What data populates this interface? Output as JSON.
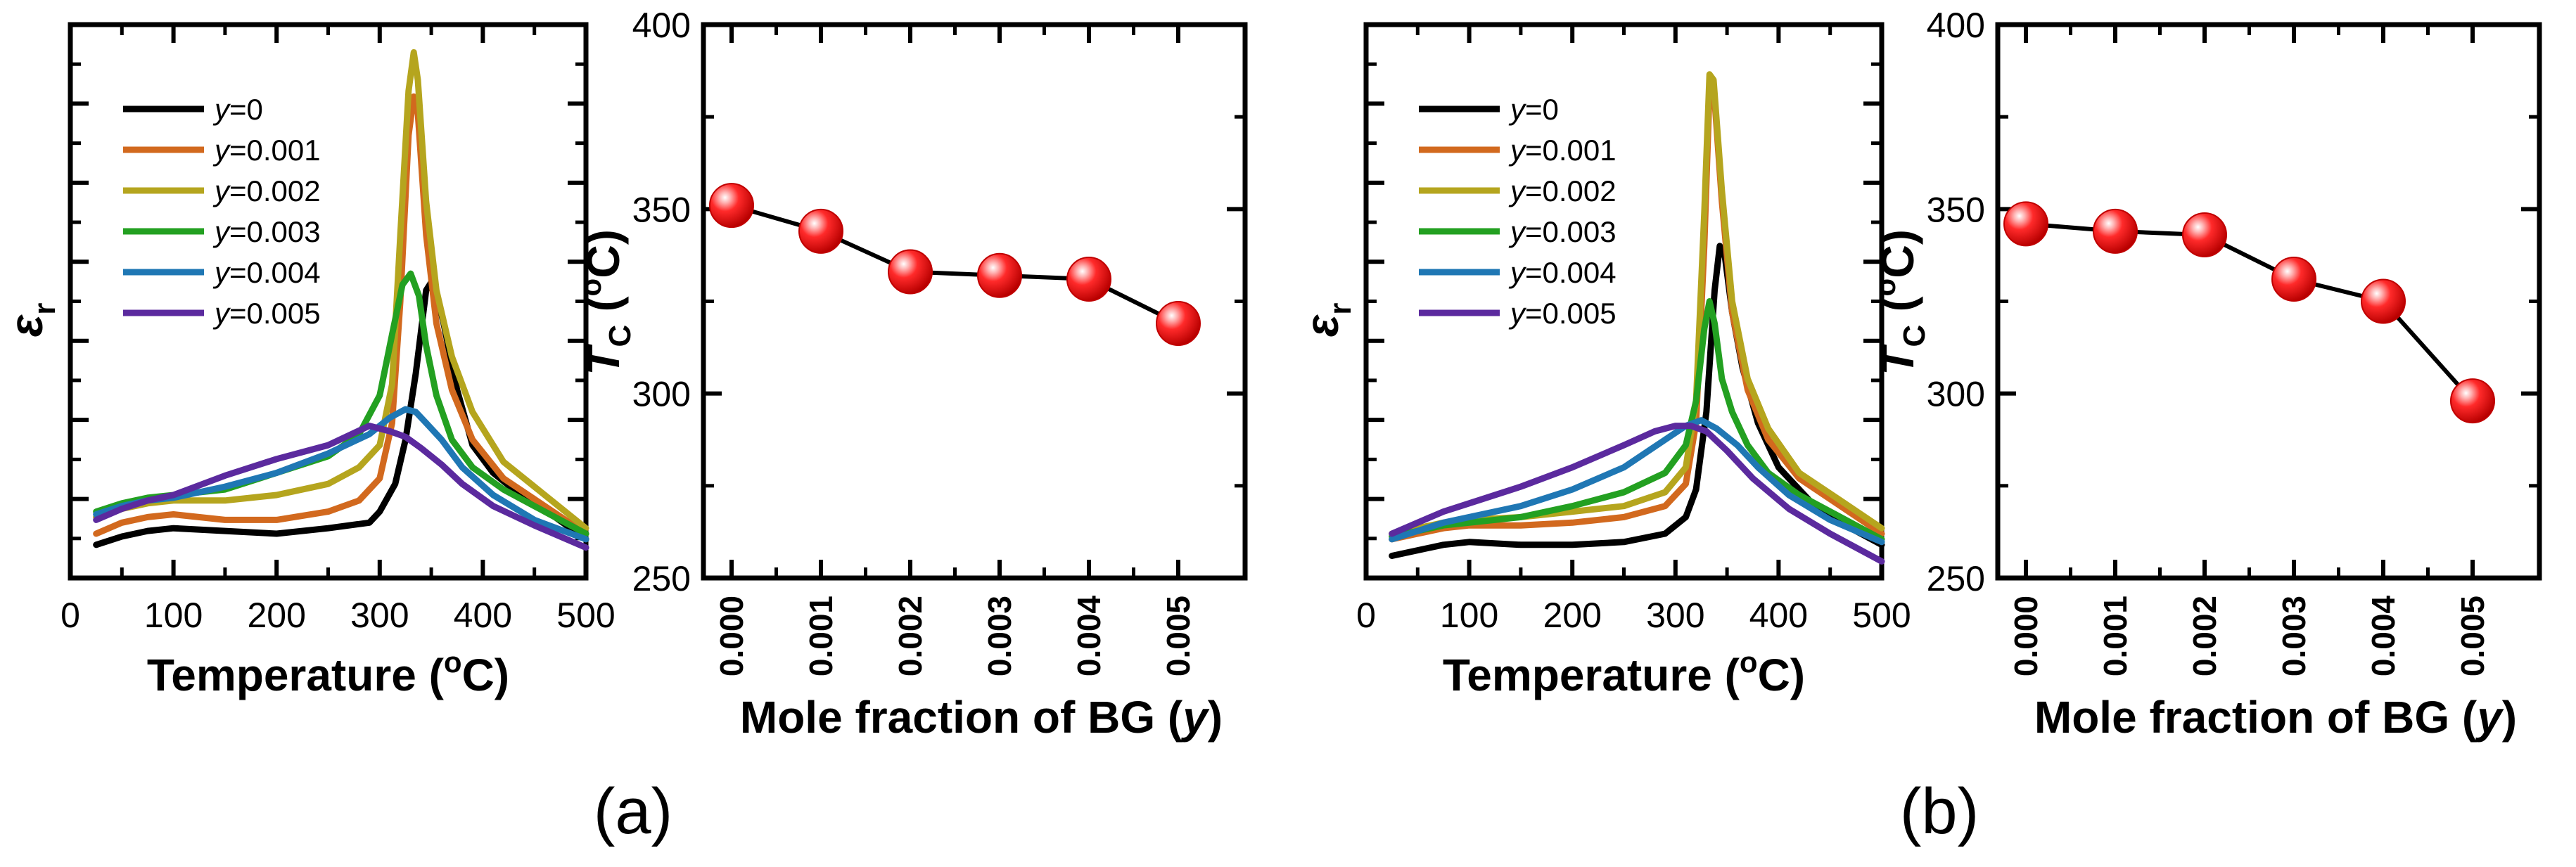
{
  "figure": {
    "panel_labels": [
      "(a)",
      "(b)"
    ]
  },
  "chart_data": [
    {
      "type": "line",
      "panel": "a",
      "title": "",
      "xlabel": "Temperature (°C)",
      "ylabel": "εr",
      "xlim": [
        0,
        500
      ],
      "ylim": [
        0,
        100
      ],
      "xticks": [
        0,
        100,
        200,
        300,
        400,
        500
      ],
      "yticks_labeled": false,
      "grid": false,
      "legend": "top-left",
      "series": [
        {
          "name": "y=0",
          "color": "#000000",
          "x": [
            25,
            50,
            75,
            100,
            150,
            200,
            250,
            290,
            300,
            315,
            325,
            335,
            345,
            352,
            362,
            375,
            390,
            410,
            440,
            470,
            500
          ],
          "y": [
            6,
            7.5,
            8.5,
            9,
            8.5,
            8,
            9,
            10,
            12,
            17,
            25,
            37,
            52,
            54,
            46,
            34,
            24,
            19,
            14.5,
            11,
            7
          ]
        },
        {
          "name": "y=0.001",
          "color": "#D2691E",
          "x": [
            25,
            50,
            75,
            100,
            150,
            200,
            250,
            280,
            300,
            312,
            320,
            328,
            333,
            337,
            345,
            355,
            370,
            390,
            420,
            460,
            500
          ],
          "y": [
            8,
            10,
            11,
            11.5,
            10.5,
            10.5,
            12,
            14,
            18,
            28,
            50,
            80,
            87,
            84,
            62,
            46,
            34,
            25,
            18,
            13,
            8
          ]
        },
        {
          "name": "y=0.002",
          "color": "#B5A51E",
          "x": [
            25,
            50,
            75,
            100,
            150,
            200,
            250,
            280,
            300,
            312,
            320,
            328,
            333,
            337,
            345,
            355,
            370,
            390,
            420,
            460,
            500
          ],
          "y": [
            11,
            12.5,
            13.5,
            14,
            14,
            15,
            17,
            20,
            24,
            35,
            62,
            88,
            95,
            90,
            68,
            52,
            40,
            30,
            21,
            15,
            9
          ]
        },
        {
          "name": "y=0.003",
          "color": "#23A021",
          "x": [
            25,
            50,
            75,
            100,
            150,
            200,
            250,
            280,
            300,
            312,
            322,
            330,
            338,
            345,
            355,
            370,
            390,
            420,
            460,
            500
          ],
          "y": [
            12,
            13.5,
            14.5,
            15,
            16,
            19,
            22,
            26,
            33,
            44,
            53,
            55,
            51,
            42,
            33,
            25,
            20,
            16,
            12,
            8
          ]
        },
        {
          "name": "y=0.004",
          "color": "#1F77B4",
          "x": [
            25,
            50,
            75,
            100,
            150,
            200,
            250,
            290,
            310,
            325,
            335,
            345,
            360,
            380,
            410,
            450,
            500
          ],
          "y": [
            11.5,
            13,
            14,
            14.5,
            16.5,
            19,
            22.5,
            26,
            29,
            30.5,
            30,
            28,
            25,
            20,
            15,
            10.5,
            7
          ]
        },
        {
          "name": "y=0.005",
          "color": "#5B2A9E",
          "x": [
            25,
            50,
            75,
            100,
            150,
            200,
            250,
            290,
            310,
            325,
            340,
            360,
            380,
            410,
            450,
            500
          ],
          "y": [
            10.5,
            12.5,
            14,
            15,
            18.5,
            21.5,
            24,
            27.5,
            26.5,
            25.5,
            23.5,
            20.5,
            17,
            13,
            9.5,
            5.5
          ]
        }
      ]
    },
    {
      "type": "scatter-line",
      "panel": "a",
      "title": "",
      "xlabel": "Mole fraction of BG (y)",
      "ylabel": "TC (°C)",
      "categories": [
        "0.000",
        "0.001",
        "0.002",
        "0.003",
        "0.004",
        "0.005"
      ],
      "values": [
        351,
        344,
        333,
        332,
        331,
        319
      ],
      "ylim": [
        250,
        400
      ],
      "yticks": [
        250,
        300,
        350,
        400
      ],
      "grid": false,
      "color": "#E01010"
    },
    {
      "type": "line",
      "panel": "b",
      "title": "",
      "xlabel": "Temperature (°C)",
      "ylabel": "εr",
      "xlim": [
        0,
        500
      ],
      "ylim": [
        0,
        100
      ],
      "xticks": [
        0,
        100,
        200,
        300,
        400,
        500
      ],
      "yticks_labeled": false,
      "grid": false,
      "legend": "top-left",
      "series": [
        {
          "name": "y=0",
          "color": "#000000",
          "x": [
            25,
            50,
            75,
            100,
            150,
            200,
            250,
            290,
            310,
            320,
            330,
            338,
            343,
            348,
            355,
            365,
            380,
            400,
            430,
            460,
            500
          ],
          "y": [
            4,
            5,
            6,
            6.5,
            6,
            6,
            6.5,
            8,
            11,
            16,
            30,
            52,
            60,
            58,
            48,
            38,
            28,
            20,
            14,
            10,
            6
          ]
        },
        {
          "name": "y=0.001",
          "color": "#D2691E",
          "x": [
            25,
            50,
            75,
            100,
            150,
            200,
            250,
            290,
            310,
            320,
            328,
            333,
            337,
            345,
            355,
            370,
            390,
            420,
            460,
            500
          ],
          "y": [
            7,
            8,
            9,
            9.5,
            9.5,
            10,
            11,
            13,
            17,
            28,
            60,
            88,
            89,
            68,
            48,
            34,
            25,
            18,
            13,
            8
          ]
        },
        {
          "name": "y=0.002",
          "color": "#B5A51E",
          "x": [
            25,
            50,
            75,
            100,
            150,
            200,
            250,
            290,
            310,
            320,
            328,
            333,
            337,
            345,
            355,
            370,
            390,
            420,
            460,
            500
          ],
          "y": [
            8,
            9,
            10,
            10.5,
            11,
            12,
            13,
            15.5,
            20,
            32,
            66,
            91,
            90,
            70,
            50,
            36,
            27,
            19,
            14,
            9
          ]
        },
        {
          "name": "y=0.003",
          "color": "#23A021",
          "x": [
            25,
            50,
            75,
            100,
            150,
            200,
            250,
            290,
            310,
            320,
            328,
            333,
            338,
            345,
            355,
            370,
            390,
            420,
            460,
            500
          ],
          "y": [
            7.5,
            8.5,
            9.5,
            10,
            11,
            13,
            15.5,
            19,
            24,
            32,
            45,
            50,
            46,
            36,
            30,
            24,
            19,
            15,
            11,
            7
          ]
        },
        {
          "name": "y=0.004",
          "color": "#1F77B4",
          "x": [
            25,
            50,
            75,
            100,
            150,
            200,
            250,
            290,
            310,
            325,
            340,
            360,
            380,
            410,
            450,
            500
          ],
          "y": [
            7,
            8.5,
            10,
            11,
            13,
            16,
            20,
            25,
            27.5,
            28.5,
            27,
            24,
            20,
            15,
            10.5,
            6.5
          ]
        },
        {
          "name": "y=0.005",
          "color": "#5B2A9E",
          "x": [
            25,
            50,
            75,
            100,
            150,
            200,
            250,
            280,
            300,
            315,
            330,
            350,
            375,
            410,
            450,
            500
          ],
          "y": [
            8,
            10,
            12,
            13.5,
            16.5,
            20,
            24,
            26.5,
            27.5,
            27.5,
            26.5,
            23,
            18,
            12.5,
            8,
            3
          ]
        }
      ]
    },
    {
      "type": "scatter-line",
      "panel": "b",
      "title": "",
      "xlabel": "Mole fraction of BG (y)",
      "ylabel": "TC (°C)",
      "categories": [
        "0.000",
        "0.001",
        "0.002",
        "0.003",
        "0.004",
        "0.005"
      ],
      "values": [
        346,
        344,
        343,
        331,
        325,
        298
      ],
      "ylim": [
        250,
        400
      ],
      "yticks": [
        250,
        300,
        350,
        400
      ],
      "grid": false,
      "color": "#E01010"
    }
  ]
}
